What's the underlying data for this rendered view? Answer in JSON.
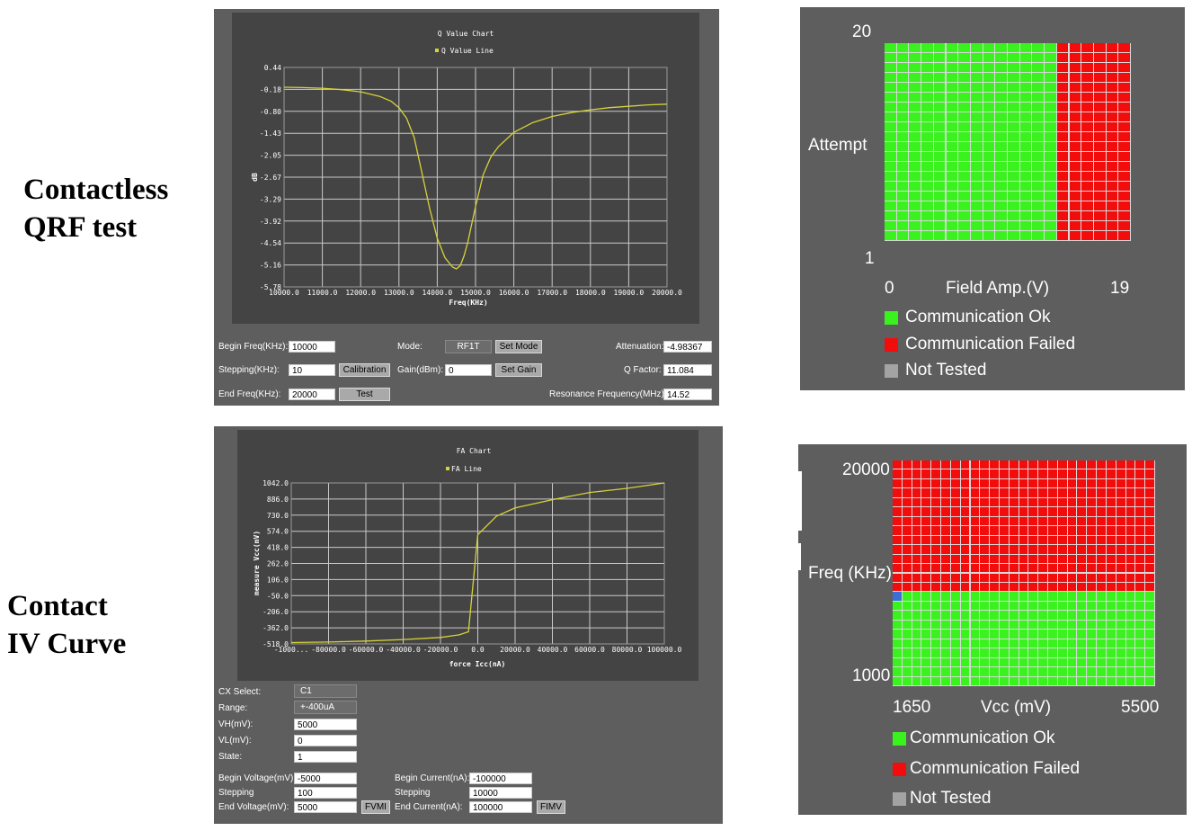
{
  "left_labels": {
    "qrf": "Contactless\nQRF test",
    "iv": "Contact\nIV Curve"
  },
  "q_panel": {
    "chart_title": "Q Value Chart",
    "legend": "Q Value Line",
    "ylabel": "dB",
    "xlabel": "Freq(KHz)",
    "yticks": [
      "0.44",
      "-0.18",
      "-0.80",
      "-1.43",
      "-2.05",
      "-2.67",
      "-3.29",
      "-3.92",
      "-4.54",
      "-5.16",
      "-5.78"
    ],
    "xticks": [
      "10000.0",
      "11000.0",
      "12000.0",
      "13000.0",
      "14000.0",
      "15000.0",
      "16000.0",
      "17000.0",
      "18000.0",
      "19000.0",
      "20000.0"
    ],
    "controls": {
      "begin_freq_label": "Begin Freq(KHz):",
      "begin_freq_value": "10000",
      "stepping_label": "Stepping(KHz):",
      "stepping_value": "10",
      "end_freq_label": "End Freq(KHz):",
      "end_freq_value": "20000",
      "calibration_button": "Calibration",
      "test_button": "Test",
      "mode_label": "Mode:",
      "mode_value": "RF1T",
      "set_mode_button": "Set Mode",
      "gain_label": "Gain(dBm):",
      "gain_value": "0",
      "set_gain_button": "Set Gain",
      "attenuation_label": "Attenuation:",
      "attenuation_value": "-4.98367",
      "qfactor_label": "Q Factor:",
      "qfactor_value": "11.084",
      "resonance_label": "Resonance Frequency(MHz):",
      "resonance_value": "14.52"
    }
  },
  "fa_panel": {
    "chart_title": "FA Chart",
    "legend": "FA Line",
    "ylabel": "measure Vcc(mV)",
    "xlabel": "force Icc(nA)",
    "yticks": [
      "1042.0",
      "886.0",
      "730.0",
      "574.0",
      "418.0",
      "262.0",
      "106.0",
      "-50.0",
      "-206.0",
      "-362.0",
      "-518.0"
    ],
    "xticks": [
      "-1000...",
      "-80000.0",
      "-60000.0",
      "-40000.0",
      "-20000.0",
      "0.0",
      "20000.0",
      "40000.0",
      "60000.0",
      "80000.0",
      "100000.0"
    ],
    "controls": {
      "cx_label": "CX Select:",
      "cx_value": "C1",
      "range_label": "Range:",
      "range_value": "+-400uA",
      "vh_label": "VH(mV):",
      "vh_value": "5000",
      "vl_label": "VL(mV):",
      "vl_value": "0",
      "state_label": "State:",
      "state_value": "1",
      "begin_voltage_label": "Begin Voltage(mV):",
      "begin_voltage_value": "-5000",
      "stepping_v_label": "Stepping",
      "stepping_v_value": "100",
      "end_voltage_label": "End Voltage(mV):",
      "end_voltage_value": "5000",
      "fvmi_button": "FVMI",
      "begin_current_label": "Begin Current(nA):",
      "begin_current_value": "-100000",
      "stepping_c_label": "Stepping",
      "stepping_c_value": "10000",
      "end_current_label": "End Current(nA):",
      "end_current_value": "100000",
      "fimv_button": "FIMV"
    }
  },
  "attempt_panel": {
    "y_top": "20",
    "y_bottom": "1",
    "y_label": "Attempt",
    "x_left": "0",
    "x_label": "Field Amp.(V)",
    "x_right": "19",
    "legend": [
      "Communication Ok",
      "Communication Failed",
      "Not Tested"
    ]
  },
  "freq_panel": {
    "y_top": "20000",
    "y_bottom": "1000",
    "y_label": "Freq (KHz)",
    "x_left": "1650",
    "x_label": "Vcc (mV)",
    "x_right": "5500",
    "legend": [
      "Communication Ok",
      "Communication Failed",
      "Not Tested"
    ]
  },
  "colors": {
    "ok": "#39f21e",
    "failed": "#f20c0c",
    "not_tested": "#a3a3a3",
    "marker": "#3a6fd8",
    "line": "#d6d23a"
  },
  "chart_data": [
    {
      "type": "line",
      "title": "Q Value Chart",
      "xlabel": "Freq(KHz)",
      "ylabel": "dB",
      "xlim": [
        10000,
        20000
      ],
      "ylim": [
        -5.78,
        0.44
      ],
      "series": [
        {
          "name": "Q Value Line",
          "x": [
            10000,
            10500,
            11000,
            11500,
            12000,
            12500,
            12800,
            13000,
            13200,
            13400,
            13600,
            13800,
            14000,
            14200,
            14400,
            14500,
            14600,
            14700,
            14800,
            15000,
            15200,
            15400,
            15600,
            16000,
            16500,
            17000,
            17500,
            18000,
            18500,
            19000,
            19500,
            20000
          ],
          "y": [
            -0.12,
            -0.13,
            -0.15,
            -0.19,
            -0.25,
            -0.38,
            -0.52,
            -0.7,
            -1.0,
            -1.55,
            -2.55,
            -3.55,
            -4.4,
            -4.95,
            -5.22,
            -5.27,
            -5.18,
            -4.9,
            -4.5,
            -3.5,
            -2.6,
            -2.1,
            -1.8,
            -1.4,
            -1.12,
            -0.95,
            -0.84,
            -0.76,
            -0.7,
            -0.66,
            -0.62,
            -0.6
          ]
        }
      ]
    },
    {
      "type": "line",
      "title": "FA Chart",
      "xlabel": "force Icc(nA)",
      "ylabel": "measure Vcc(mV)",
      "xlim": [
        -100000,
        100000
      ],
      "ylim": [
        -518,
        1042
      ],
      "series": [
        {
          "name": "FA Line",
          "x": [
            -100000,
            -80000,
            -60000,
            -40000,
            -20000,
            -10000,
            -5000,
            0,
            10000,
            20000,
            40000,
            60000,
            80000,
            100000
          ],
          "y": [
            -505,
            -500,
            -490,
            -475,
            -455,
            -430,
            -400,
            540,
            720,
            800,
            880,
            950,
            990,
            1042
          ]
        }
      ]
    },
    {
      "type": "heatmap",
      "title": "",
      "xlabel": "Field Amp.(V)",
      "ylabel": "Attempt",
      "x_range": [
        0,
        19
      ],
      "y_range": [
        1,
        20
      ],
      "cells": "columns 0-13 Communication Ok for all attempts; columns 14-19 Communication Failed for all attempts"
    },
    {
      "type": "heatmap",
      "title": "",
      "xlabel": "Vcc (mV)",
      "ylabel": "Freq (KHz)",
      "x_range": [
        1650,
        5500
      ],
      "y_range": [
        1000,
        20000
      ],
      "cells": "upper frequency rows Communication Failed; lower rows Communication Ok; one blue cell at lowest Vcc on the boundary row"
    }
  ]
}
